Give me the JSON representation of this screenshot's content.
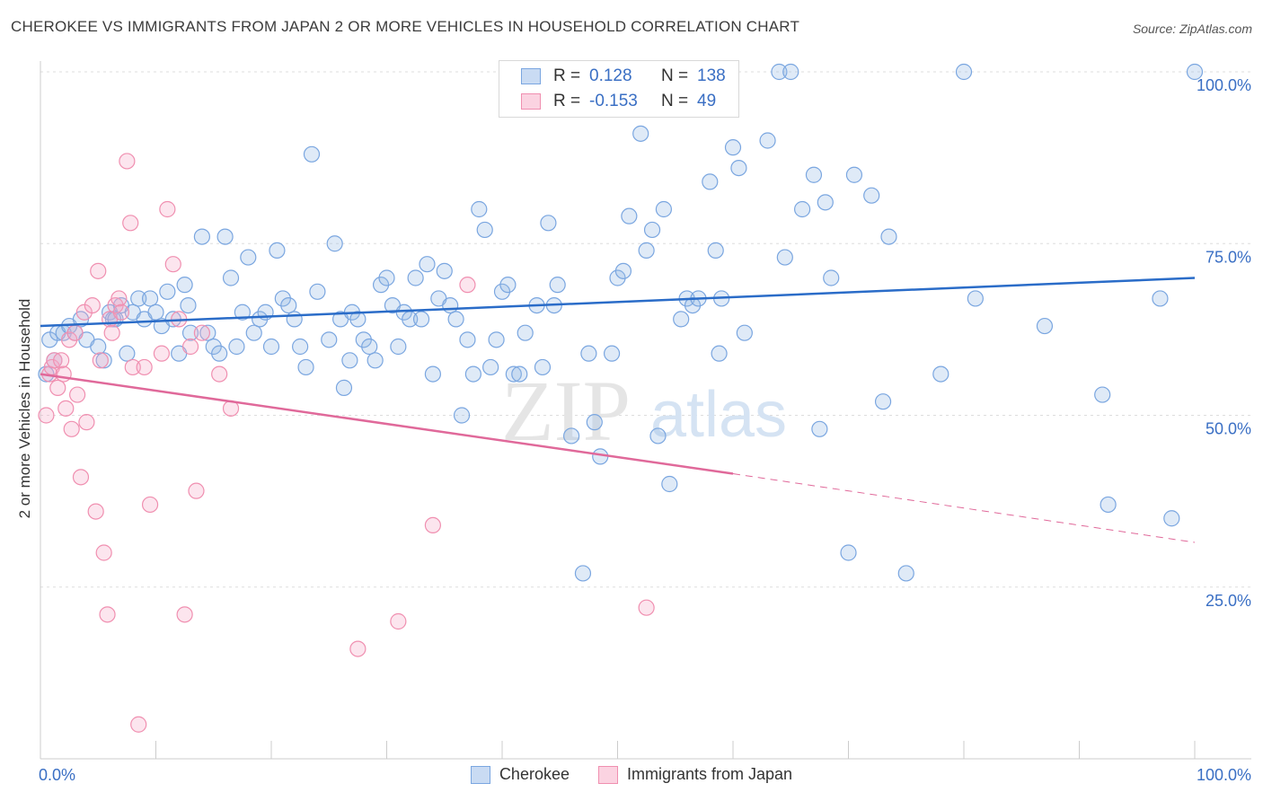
{
  "header": {
    "title": "CHEROKEE VS IMMIGRANTS FROM JAPAN 2 OR MORE VEHICLES IN HOUSEHOLD CORRELATION CHART",
    "source": "Source: ZipAtlas.com"
  },
  "watermark": {
    "zip": "ZIP",
    "atlas": "atlas"
  },
  "legend": {
    "rows": [
      {
        "r_label": "R =",
        "r_value": "0.128",
        "n_label": "N =",
        "n_value": "138",
        "color": "#7aa6e0"
      },
      {
        "r_label": "R =",
        "r_value": "-0.153",
        "n_label": "N =",
        "n_value": "49",
        "color": "#f08fb0"
      }
    ]
  },
  "chart_data": {
    "type": "scatter",
    "title": "CHEROKEE VS IMMIGRANTS FROM JAPAN 2 OR MORE VEHICLES IN HOUSEHOLD CORRELATION CHART",
    "xlabel": "",
    "ylabel": "2 or more Vehicles in Household",
    "xlim": [
      0,
      100
    ],
    "ylim": [
      0,
      105
    ],
    "x_tick_labels": [
      "0.0%",
      "100.0%"
    ],
    "y_tick_labels": [
      "25.0%",
      "50.0%",
      "75.0%",
      "100.0%"
    ],
    "y_ticks": [
      25,
      50,
      75,
      100
    ],
    "grid": "horizontal dashed",
    "legend_position": "top-center",
    "series": [
      {
        "name": "Cherokee",
        "color": "#7aa6e0",
        "line_color": "#2a6cc8",
        "trend": {
          "x": [
            0,
            100
          ],
          "y": [
            63.0,
            70.0
          ],
          "dashed_from": null
        },
        "points": [
          [
            0.5,
            56
          ],
          [
            0.8,
            61
          ],
          [
            1.2,
            58
          ],
          [
            1.5,
            62
          ],
          [
            2,
            62
          ],
          [
            2.5,
            63
          ],
          [
            3,
            62
          ],
          [
            3.5,
            64
          ],
          [
            4,
            61
          ],
          [
            5,
            60
          ],
          [
            5.5,
            58
          ],
          [
            6,
            65
          ],
          [
            6.3,
            64
          ],
          [
            6.5,
            64
          ],
          [
            7,
            66
          ],
          [
            7.5,
            59
          ],
          [
            8,
            65
          ],
          [
            8.5,
            67
          ],
          [
            9,
            64
          ],
          [
            9.5,
            67
          ],
          [
            10,
            65
          ],
          [
            10.5,
            63
          ],
          [
            11,
            68
          ],
          [
            11.5,
            64
          ],
          [
            12,
            59
          ],
          [
            12.5,
            69
          ],
          [
            12.8,
            66
          ],
          [
            13,
            62
          ],
          [
            14,
            76
          ],
          [
            14.5,
            62
          ],
          [
            15,
            60
          ],
          [
            15.5,
            59
          ],
          [
            16,
            76
          ],
          [
            16.5,
            70
          ],
          [
            17,
            60
          ],
          [
            17.5,
            65
          ],
          [
            18,
            73
          ],
          [
            18.5,
            62
          ],
          [
            19,
            64
          ],
          [
            19.5,
            65
          ],
          [
            20,
            60
          ],
          [
            20.5,
            74
          ],
          [
            21,
            67
          ],
          [
            21.5,
            66
          ],
          [
            22,
            64
          ],
          [
            22.5,
            60
          ],
          [
            23,
            57
          ],
          [
            23.5,
            88
          ],
          [
            24,
            68
          ],
          [
            25,
            61
          ],
          [
            25.5,
            75
          ],
          [
            26,
            64
          ],
          [
            26.3,
            54
          ],
          [
            26.8,
            58
          ],
          [
            27,
            65
          ],
          [
            27.5,
            64
          ],
          [
            28,
            61
          ],
          [
            28.5,
            60
          ],
          [
            29,
            58
          ],
          [
            29.5,
            69
          ],
          [
            30,
            70
          ],
          [
            30.5,
            66
          ],
          [
            31,
            60
          ],
          [
            31.5,
            65
          ],
          [
            32,
            64
          ],
          [
            32.5,
            70
          ],
          [
            33,
            64
          ],
          [
            33.5,
            72
          ],
          [
            34,
            56
          ],
          [
            34.5,
            67
          ],
          [
            35,
            71
          ],
          [
            35.5,
            66
          ],
          [
            36,
            64
          ],
          [
            36.5,
            50
          ],
          [
            37,
            61
          ],
          [
            37.5,
            56
          ],
          [
            38,
            80
          ],
          [
            38.5,
            77
          ],
          [
            39,
            57
          ],
          [
            39.5,
            61
          ],
          [
            40,
            68
          ],
          [
            40.5,
            69
          ],
          [
            41,
            56
          ],
          [
            41.5,
            56
          ],
          [
            42,
            62
          ],
          [
            43,
            66
          ],
          [
            43.5,
            57
          ],
          [
            44,
            78
          ],
          [
            44.5,
            66
          ],
          [
            44.8,
            69
          ],
          [
            46,
            47
          ],
          [
            47,
            27
          ],
          [
            47.5,
            59
          ],
          [
            48,
            49
          ],
          [
            48.5,
            44
          ],
          [
            49.5,
            59
          ],
          [
            50,
            70
          ],
          [
            50.5,
            71
          ],
          [
            51,
            79
          ],
          [
            52,
            91
          ],
          [
            52.5,
            74
          ],
          [
            53,
            77
          ],
          [
            53.5,
            47
          ],
          [
            54,
            80
          ],
          [
            54.5,
            40
          ],
          [
            55,
            100
          ],
          [
            55.5,
            64
          ],
          [
            56,
            67
          ],
          [
            56.5,
            66
          ],
          [
            57,
            67
          ],
          [
            58,
            84
          ],
          [
            58.5,
            74
          ],
          [
            58.8,
            59
          ],
          [
            59,
            67
          ],
          [
            60,
            89
          ],
          [
            60.5,
            86
          ],
          [
            61,
            62
          ],
          [
            63,
            90
          ],
          [
            64,
            100
          ],
          [
            64.5,
            73
          ],
          [
            65,
            100
          ],
          [
            66,
            80
          ],
          [
            67,
            85
          ],
          [
            67.5,
            48
          ],
          [
            68,
            81
          ],
          [
            68.5,
            70
          ],
          [
            70,
            30
          ],
          [
            70.5,
            85
          ],
          [
            72,
            82
          ],
          [
            73,
            52
          ],
          [
            73.5,
            76
          ],
          [
            75,
            27
          ],
          [
            78,
            56
          ],
          [
            80,
            100
          ],
          [
            81,
            67
          ],
          [
            87,
            63
          ],
          [
            92,
            53
          ],
          [
            92.5,
            37
          ],
          [
            97,
            67
          ],
          [
            98,
            35
          ],
          [
            100,
            100
          ]
        ]
      },
      {
        "name": "Immigrants from Japan",
        "color": "#f08fb0",
        "line_color": "#e0699a",
        "trend": {
          "x": [
            0,
            60,
            100
          ],
          "y": [
            56.0,
            41.5,
            31.5
          ],
          "dashed_from": 60
        },
        "points": [
          [
            0.5,
            50
          ],
          [
            0.8,
            56
          ],
          [
            1,
            57
          ],
          [
            1.2,
            58
          ],
          [
            1.5,
            54
          ],
          [
            1.8,
            58
          ],
          [
            2,
            56
          ],
          [
            2.2,
            51
          ],
          [
            2.5,
            61
          ],
          [
            2.7,
            48
          ],
          [
            3,
            62
          ],
          [
            3.2,
            53
          ],
          [
            3.5,
            41
          ],
          [
            3.8,
            65
          ],
          [
            4,
            49
          ],
          [
            4.5,
            66
          ],
          [
            4.8,
            36
          ],
          [
            5,
            71
          ],
          [
            5.2,
            58
          ],
          [
            5.5,
            30
          ],
          [
            5.8,
            21
          ],
          [
            6,
            64
          ],
          [
            6.2,
            62
          ],
          [
            6.5,
            66
          ],
          [
            6.8,
            67
          ],
          [
            7,
            65
          ],
          [
            7.5,
            87
          ],
          [
            7.8,
            78
          ],
          [
            8,
            57
          ],
          [
            8.5,
            5
          ],
          [
            9,
            57
          ],
          [
            9.5,
            37
          ],
          [
            10.5,
            59
          ],
          [
            11,
            80
          ],
          [
            11.5,
            72
          ],
          [
            12,
            64
          ],
          [
            12.5,
            21
          ],
          [
            13,
            60
          ],
          [
            13.5,
            39
          ],
          [
            14,
            62
          ],
          [
            15.5,
            56
          ],
          [
            16.5,
            51
          ],
          [
            27.5,
            16
          ],
          [
            31,
            20
          ],
          [
            34,
            34
          ],
          [
            37,
            69
          ],
          [
            52.5,
            22
          ]
        ]
      }
    ]
  },
  "bottom_legend": {
    "items": [
      {
        "label": "Cherokee",
        "color": "#7aa6e0"
      },
      {
        "label": "Immigrants from Japan",
        "color": "#f08fb0"
      }
    ]
  }
}
